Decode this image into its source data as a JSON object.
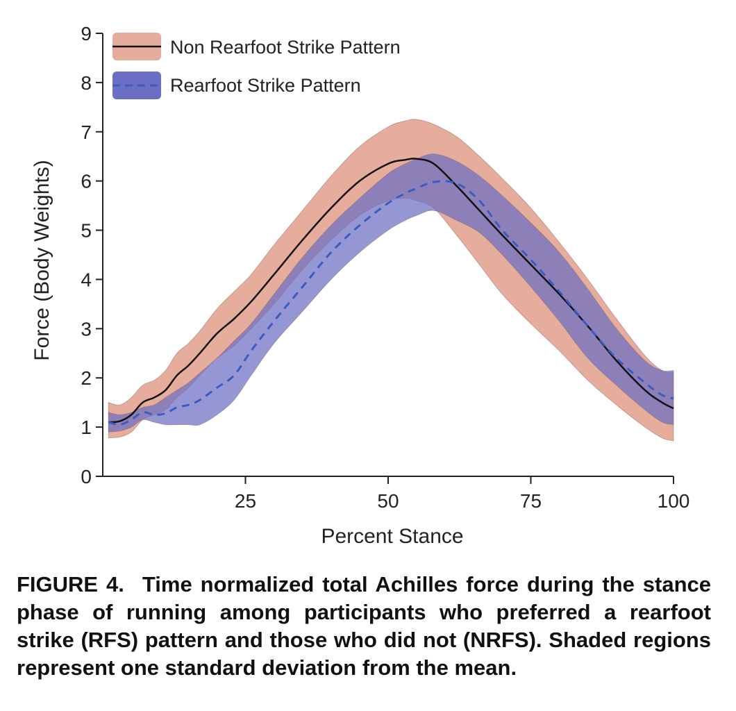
{
  "caption": {
    "label": "FIGURE 4.",
    "text": "Time normalized total Achilles force during the stance phase of running among participants who preferred a rearfoot strike (RFS) pattern and those who did not (NRFS). Shaded regions represent one standard deviation from the mean."
  },
  "colors": {
    "nrfs_band": "#e7ad9c",
    "rfs_band": "#6b6fc4",
    "nrfs_line": "#111111",
    "rfs_line": "#3c5bbf"
  },
  "chart_data": {
    "type": "line",
    "xlabel": "Percent Stance",
    "ylabel": "Force (Body Weights)",
    "xlim": [
      0,
      100
    ],
    "ylim": [
      0,
      9
    ],
    "xticks": [
      25,
      50,
      75,
      100
    ],
    "yticks": [
      0,
      1,
      2,
      3,
      4,
      5,
      6,
      7,
      8,
      9
    ],
    "grid": false,
    "legend_position": "top-left",
    "x": [
      1,
      3,
      5,
      7,
      9,
      11,
      13,
      15,
      17,
      20,
      23,
      26,
      30,
      35,
      40,
      45,
      50,
      53,
      55,
      58,
      62,
      66,
      70,
      75,
      80,
      85,
      90,
      95,
      98,
      100
    ],
    "series": [
      {
        "name": "Non Rearfoot Strike Pattern",
        "style": "solid",
        "mean": [
          1.1,
          1.12,
          1.25,
          1.5,
          1.6,
          1.75,
          2.05,
          2.25,
          2.5,
          2.9,
          3.2,
          3.55,
          4.1,
          4.8,
          5.45,
          6.0,
          6.35,
          6.43,
          6.45,
          6.35,
          5.9,
          5.4,
          4.9,
          4.3,
          3.7,
          3.05,
          2.35,
          1.75,
          1.5,
          1.38
        ],
        "upper": [
          1.5,
          1.45,
          1.6,
          1.85,
          1.95,
          2.15,
          2.5,
          2.7,
          2.95,
          3.4,
          3.75,
          4.1,
          4.7,
          5.4,
          6.1,
          6.7,
          7.1,
          7.22,
          7.25,
          7.15,
          6.9,
          6.5,
          6.05,
          5.45,
          4.75,
          4.0,
          3.2,
          2.45,
          2.15,
          2.1
        ],
        "lower": [
          0.78,
          0.8,
          0.9,
          1.15,
          1.25,
          1.35,
          1.6,
          1.8,
          2.05,
          2.4,
          2.65,
          3.0,
          3.5,
          4.2,
          4.8,
          5.3,
          5.6,
          5.65,
          5.6,
          5.45,
          4.9,
          4.3,
          3.7,
          3.1,
          2.55,
          1.95,
          1.45,
          1.0,
          0.78,
          0.72
        ]
      },
      {
        "name": "Rearfoot Strike Pattern",
        "style": "dashed",
        "mean": [
          1.1,
          1.05,
          1.15,
          1.3,
          1.25,
          1.28,
          1.4,
          1.45,
          1.55,
          1.8,
          2.05,
          2.55,
          3.15,
          3.85,
          4.55,
          5.1,
          5.55,
          5.75,
          5.85,
          5.98,
          5.95,
          5.6,
          5.0,
          4.4,
          3.75,
          3.05,
          2.4,
          1.9,
          1.65,
          1.58
        ],
        "upper": [
          1.3,
          1.25,
          1.3,
          1.4,
          1.45,
          1.6,
          1.75,
          1.9,
          2.1,
          2.4,
          2.75,
          3.1,
          3.7,
          4.45,
          5.1,
          5.65,
          6.15,
          6.35,
          6.45,
          6.55,
          6.4,
          6.1,
          5.7,
          5.15,
          4.55,
          3.8,
          3.0,
          2.35,
          2.15,
          2.15
        ],
        "lower": [
          0.9,
          0.92,
          1.0,
          1.15,
          1.1,
          1.05,
          1.05,
          1.05,
          1.05,
          1.25,
          1.55,
          2.05,
          2.7,
          3.35,
          4.0,
          4.55,
          5.0,
          5.2,
          5.3,
          5.4,
          5.2,
          4.95,
          4.5,
          3.85,
          3.15,
          2.4,
          1.85,
          1.35,
          1.1,
          1.05
        ]
      }
    ]
  }
}
